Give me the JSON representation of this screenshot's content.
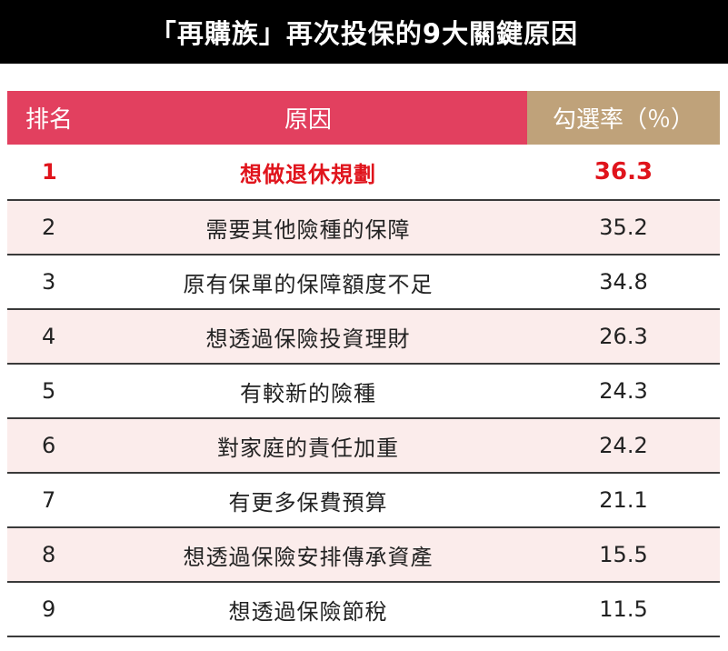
{
  "title": "「再購族」再次投保的9大關鍵原因",
  "table": {
    "headers": {
      "rank": "排名",
      "reason": "原因",
      "rate": "勾選率（％）"
    },
    "rows": [
      {
        "rank": "1",
        "reason": "想做退休規劃",
        "rate": "36.3"
      },
      {
        "rank": "2",
        "reason": "需要其他險種的保障",
        "rate": "35.2"
      },
      {
        "rank": "3",
        "reason": "原有保單的保障額度不足",
        "rate": "34.8"
      },
      {
        "rank": "4",
        "reason": "想透過保險投資理財",
        "rate": "26.3"
      },
      {
        "rank": "5",
        "reason": "有較新的險種",
        "rate": "24.3"
      },
      {
        "rank": "6",
        "reason": "對家庭的責任加重",
        "rate": "24.2"
      },
      {
        "rank": "7",
        "reason": "有更多保費預算",
        "rate": "21.1"
      },
      {
        "rank": "8",
        "reason": "想透過保險安排傳承資產",
        "rate": "15.5"
      },
      {
        "rank": "9",
        "reason": "想透過保險節稅",
        "rate": "11.5"
      }
    ]
  },
  "colors": {
    "title_background": "#000000",
    "header_pink": "#e2405f",
    "header_gold": "#bfa27a",
    "row_shade": "#fbeceb",
    "highlight_text": "#e0141c"
  }
}
